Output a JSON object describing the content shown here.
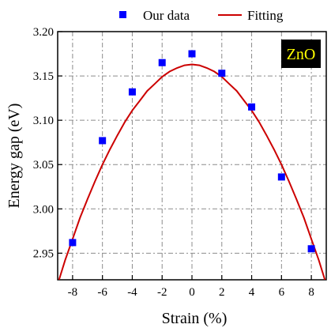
{
  "chart_data": {
    "type": "scatter",
    "xlabel": "Strain (%)",
    "ylabel": "Energy gap (eV)",
    "xlim": [
      -9,
      9
    ],
    "ylim": [
      2.92,
      3.2
    ],
    "xticks": [
      -8,
      -6,
      -4,
      -2,
      0,
      2,
      4,
      6,
      8
    ],
    "yticks": [
      2.95,
      3.0,
      3.05,
      3.1,
      3.15,
      3.2
    ],
    "xtick_labels": [
      "-8",
      "-6",
      "-4",
      "-2",
      "0",
      "2",
      "4",
      "6",
      "8"
    ],
    "ytick_labels": [
      "2.95",
      "3.00",
      "3.05",
      "3.10",
      "3.15",
      "3.20"
    ],
    "grid": true,
    "legend_position": "top",
    "annotation": "ZnO",
    "series": [
      {
        "name": "Our data",
        "kind": "scatter",
        "marker": "square",
        "color": "#0000ff",
        "x": [
          -8,
          -6,
          -4,
          -2,
          0,
          2,
          4,
          6,
          8
        ],
        "y": [
          2.962,
          3.077,
          3.132,
          3.165,
          3.175,
          3.153,
          3.115,
          3.036,
          2.955
        ]
      },
      {
        "name": "Fitting",
        "kind": "line",
        "color": "#cc0000",
        "x": [
          -9.0,
          -8.5,
          -8.0,
          -7.5,
          -7.0,
          -6.5,
          -6.0,
          -5.5,
          -5.0,
          -4.5,
          -4.0,
          -3.5,
          -3.0,
          -2.5,
          -2.0,
          -1.5,
          -1.0,
          -0.5,
          0.0,
          0.5,
          1.0,
          1.5,
          2.0,
          2.5,
          3.0,
          3.5,
          4.0,
          4.5,
          5.0,
          5.5,
          6.0,
          6.5,
          7.0,
          7.5,
          8.0,
          8.5,
          9.0
        ],
        "y": [
          2.915,
          2.942,
          2.966,
          2.99,
          3.011,
          3.031,
          3.05,
          3.067,
          3.083,
          3.098,
          3.111,
          3.122,
          3.133,
          3.141,
          3.149,
          3.155,
          3.159,
          3.162,
          3.163,
          3.162,
          3.159,
          3.155,
          3.149,
          3.141,
          3.133,
          3.122,
          3.111,
          3.098,
          3.083,
          3.067,
          3.05,
          3.031,
          3.011,
          2.99,
          2.966,
          2.942,
          2.915
        ]
      }
    ]
  }
}
